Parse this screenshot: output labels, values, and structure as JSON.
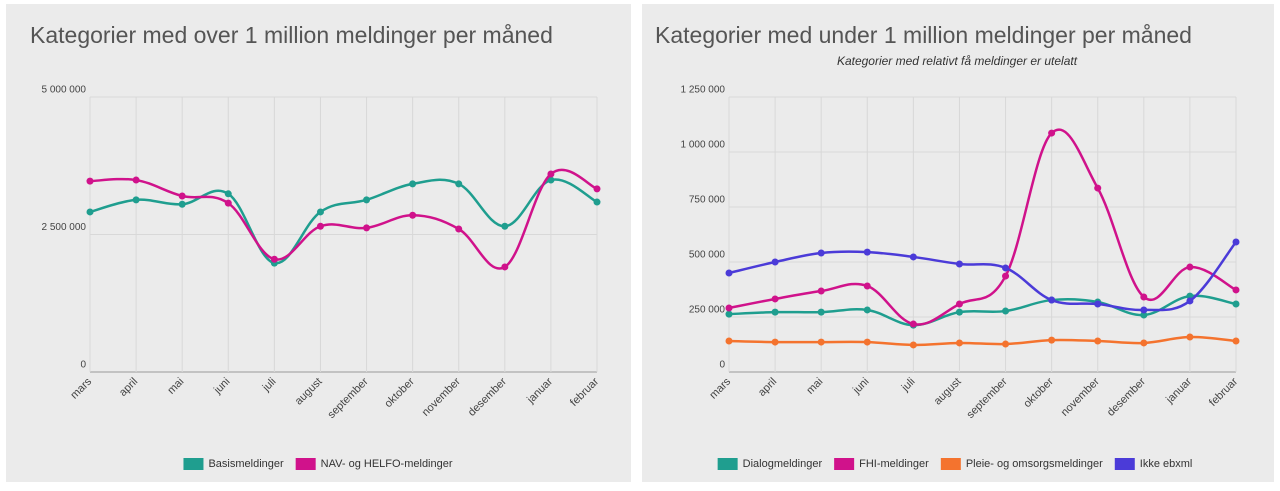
{
  "chart_data": [
    {
      "type": "line",
      "title": "Kategorier med over 1 million meldinger per måned",
      "categories": [
        "mars",
        "april",
        "mai",
        "juni",
        "juli",
        "august",
        "september",
        "oktober",
        "november",
        "desember",
        "januar",
        "februar"
      ],
      "ylim": [
        0,
        5000000
      ],
      "yticks": [
        0,
        {
          "value": 2500000,
          "label": "2 500 000"
        },
        {
          "value": 5000000,
          "label": "5 000 000"
        }
      ],
      "grid": true,
      "legend": "bottom",
      "series": [
        {
          "name": "Basismeldinger",
          "color": "#1f9e8f",
          "values": [
            2910000,
            3130000,
            3050000,
            3240000,
            1980000,
            2910000,
            3130000,
            3420000,
            3420000,
            2650000,
            3490000,
            3090000
          ]
        },
        {
          "name": "NAV- og HELFO-meldinger",
          "color": "#d0128b",
          "values": [
            3470000,
            3490000,
            3200000,
            3070000,
            2050000,
            2650000,
            2620000,
            2850000,
            2600000,
            1910000,
            3600000,
            3330000
          ]
        }
      ]
    },
    {
      "type": "line",
      "title": "Kategorier med under 1 million meldinger per måned",
      "subtitle": "Kategorier med relativt få meldinger er utelatt",
      "categories": [
        "mars",
        "april",
        "mai",
        "juni",
        "juli",
        "august",
        "september",
        "oktober",
        "november",
        "desember",
        "januar",
        "februar"
      ],
      "ylim": [
        0,
        1250000
      ],
      "yticks": [
        0,
        {
          "value": 250000,
          "label": "250 000"
        },
        {
          "value": 500000,
          "label": "500 000"
        },
        {
          "value": 750000,
          "label": "750 000"
        },
        {
          "value": 1000000,
          "label": "1 000 000"
        },
        {
          "value": 1250000,
          "label": "1 250 000"
        }
      ],
      "grid": true,
      "legend": "bottom",
      "series": [
        {
          "name": "Dialogmeldinger",
          "color": "#1f9e8f",
          "values": [
            263000,
            272000,
            272000,
            282000,
            213000,
            272000,
            277000,
            327000,
            318000,
            259000,
            345000,
            309000
          ]
        },
        {
          "name": "FHI-meldinger",
          "color": "#d0128b",
          "values": [
            291000,
            332000,
            368000,
            391000,
            218000,
            309000,
            436000,
            1086000,
            836000,
            341000,
            477000,
            373000
          ]
        },
        {
          "name": "Pleie- og omsorgsmeldinger",
          "color": "#f4732e",
          "values": [
            141000,
            136000,
            136000,
            136000,
            123000,
            132000,
            127000,
            145000,
            141000,
            132000,
            159000,
            141000
          ]
        },
        {
          "name": "Ikke ebxml",
          "color": "#4b3bd8",
          "values": [
            450000,
            500000,
            541000,
            545000,
            523000,
            491000,
            473000,
            327000,
            309000,
            282000,
            323000,
            591000
          ]
        }
      ]
    }
  ]
}
